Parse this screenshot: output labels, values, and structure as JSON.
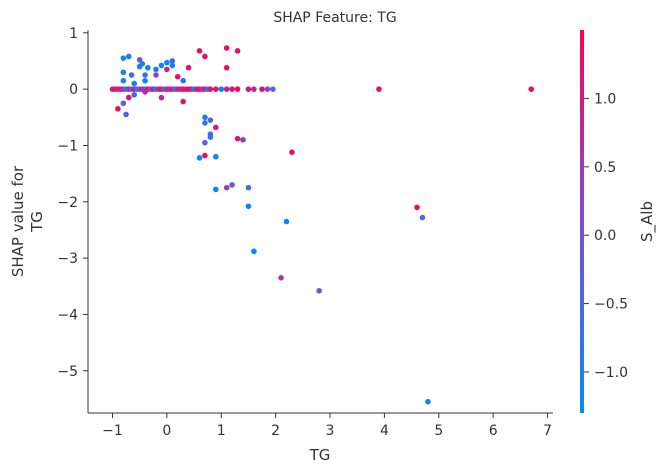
{
  "chart_data": {
    "type": "scatter",
    "title": "SHAP Feature: TG",
    "xlabel": "TG",
    "ylabel": "SHAP value for\nTG",
    "xlim": [
      -1.45,
      7.1
    ],
    "ylim": [
      -5.75,
      1.05
    ],
    "xticks": [
      -1,
      0,
      1,
      2,
      3,
      4,
      5,
      6,
      7
    ],
    "yticks": [
      1,
      0,
      -1,
      -2,
      -3,
      -4,
      -5
    ],
    "grid": false,
    "colorbar": {
      "label": "S_Alb",
      "range": [
        -1.3,
        1.5
      ],
      "ticks": [
        1.0,
        0.5,
        0.0,
        -0.5,
        -1.0
      ],
      "low_color": "#008bfb",
      "high_color": "#ff0052"
    },
    "points": [
      {
        "x": -1.0,
        "y": 0.0,
        "c": 1.2
      },
      {
        "x": -0.95,
        "y": 0.0,
        "c": 1.0
      },
      {
        "x": -0.9,
        "y": 0.0,
        "c": 0.9
      },
      {
        "x": -0.85,
        "y": 0.0,
        "c": 1.1
      },
      {
        "x": -0.8,
        "y": 0.0,
        "c": 0.6
      },
      {
        "x": -0.75,
        "y": 0.0,
        "c": -1.0
      },
      {
        "x": -0.7,
        "y": 0.0,
        "c": 0.8
      },
      {
        "x": -0.65,
        "y": 0.0,
        "c": -0.5
      },
      {
        "x": -0.6,
        "y": 0.0,
        "c": 1.2
      },
      {
        "x": -0.55,
        "y": 0.0,
        "c": -1.1
      },
      {
        "x": -0.5,
        "y": 0.0,
        "c": 0.3
      },
      {
        "x": -0.45,
        "y": 0.0,
        "c": 1.0
      },
      {
        "x": -0.4,
        "y": 0.0,
        "c": -0.8
      },
      {
        "x": -0.35,
        "y": 0.0,
        "c": 1.3
      },
      {
        "x": -0.3,
        "y": 0.0,
        "c": 0.1
      },
      {
        "x": -0.25,
        "y": 0.0,
        "c": 1.1
      },
      {
        "x": -0.2,
        "y": 0.0,
        "c": -1.0
      },
      {
        "x": -0.15,
        "y": 0.0,
        "c": 0.9
      },
      {
        "x": -0.1,
        "y": 0.0,
        "c": 1.2
      },
      {
        "x": -0.05,
        "y": 0.0,
        "c": -0.3
      },
      {
        "x": 0.0,
        "y": 0.0,
        "c": 1.0
      },
      {
        "x": 0.05,
        "y": 0.0,
        "c": 0.7
      },
      {
        "x": 0.1,
        "y": 0.0,
        "c": 1.2
      },
      {
        "x": 0.15,
        "y": 0.0,
        "c": -1.1
      },
      {
        "x": 0.2,
        "y": 0.0,
        "c": 1.1
      },
      {
        "x": 0.25,
        "y": 0.0,
        "c": 0.8
      },
      {
        "x": 0.3,
        "y": 0.0,
        "c": 1.2
      },
      {
        "x": 0.35,
        "y": 0.0,
        "c": 1.0
      },
      {
        "x": 0.4,
        "y": 0.0,
        "c": 1.3
      },
      {
        "x": 0.45,
        "y": 0.0,
        "c": 0.9
      },
      {
        "x": 0.5,
        "y": 0.0,
        "c": -1.2
      },
      {
        "x": 0.55,
        "y": 0.0,
        "c": 1.1
      },
      {
        "x": 0.6,
        "y": 0.0,
        "c": 1.2
      },
      {
        "x": 0.65,
        "y": 0.0,
        "c": 0.5
      },
      {
        "x": 0.7,
        "y": 0.0,
        "c": 1.2
      },
      {
        "x": 0.75,
        "y": 0.0,
        "c": -1.0
      },
      {
        "x": 0.8,
        "y": 0.0,
        "c": 1.1
      },
      {
        "x": 0.9,
        "y": 0.0,
        "c": 1.2
      },
      {
        "x": 1.0,
        "y": 0.0,
        "c": -1.1
      },
      {
        "x": 1.1,
        "y": 0.0,
        "c": 1.0
      },
      {
        "x": 1.2,
        "y": 0.0,
        "c": 1.2
      },
      {
        "x": 1.3,
        "y": 0.0,
        "c": 1.3
      },
      {
        "x": 1.5,
        "y": 0.0,
        "c": 1.2
      },
      {
        "x": 1.6,
        "y": 0.0,
        "c": 0.8
      },
      {
        "x": 1.75,
        "y": 0.0,
        "c": 1.2
      },
      {
        "x": 1.85,
        "y": 0.0,
        "c": 0.3
      },
      {
        "x": 1.95,
        "y": 0.0,
        "c": -0.4
      },
      {
        "x": 3.9,
        "y": 0.0,
        "c": 1.3
      },
      {
        "x": 6.7,
        "y": 0.0,
        "c": 1.3
      },
      {
        "x": -0.8,
        "y": 0.55,
        "c": -1.1
      },
      {
        "x": -0.7,
        "y": 0.58,
        "c": -0.9
      },
      {
        "x": -0.8,
        "y": 0.3,
        "c": -1.0
      },
      {
        "x": -0.8,
        "y": 0.15,
        "c": -1.1
      },
      {
        "x": -0.65,
        "y": 0.25,
        "c": -0.6
      },
      {
        "x": -0.6,
        "y": 0.1,
        "c": -1.0
      },
      {
        "x": -0.5,
        "y": 0.52,
        "c": -0.3
      },
      {
        "x": -0.5,
        "y": 0.4,
        "c": -1.1
      },
      {
        "x": -0.45,
        "y": 0.45,
        "c": -0.8
      },
      {
        "x": -0.35,
        "y": 0.38,
        "c": -1.2
      },
      {
        "x": -0.4,
        "y": 0.25,
        "c": -0.5
      },
      {
        "x": -0.4,
        "y": 0.15,
        "c": -1.1
      },
      {
        "x": -0.2,
        "y": 0.35,
        "c": -0.9
      },
      {
        "x": -0.2,
        "y": 0.25,
        "c": 0.2
      },
      {
        "x": -0.1,
        "y": 0.42,
        "c": -1.2
      },
      {
        "x": 0.0,
        "y": 0.47,
        "c": -1.0
      },
      {
        "x": 0.0,
        "y": 0.35,
        "c": 0.9
      },
      {
        "x": 0.1,
        "y": 0.5,
        "c": -0.7
      },
      {
        "x": 0.1,
        "y": 0.42,
        "c": -1.1
      },
      {
        "x": 0.2,
        "y": 0.22,
        "c": 1.2
      },
      {
        "x": 0.3,
        "y": 0.15,
        "c": -1.0
      },
      {
        "x": 0.4,
        "y": 0.38,
        "c": 1.2
      },
      {
        "x": 0.6,
        "y": 0.68,
        "c": 1.3
      },
      {
        "x": 0.7,
        "y": 0.58,
        "c": 1.2
      },
      {
        "x": 1.1,
        "y": 0.73,
        "c": 1.3
      },
      {
        "x": 1.3,
        "y": 0.68,
        "c": 1.2
      },
      {
        "x": 1.1,
        "y": 0.38,
        "c": 1.3
      },
      {
        "x": -0.9,
        "y": -0.35,
        "c": 1.2
      },
      {
        "x": -0.8,
        "y": -0.25,
        "c": -0.3
      },
      {
        "x": -0.75,
        "y": -0.45,
        "c": -0.4
      },
      {
        "x": -0.7,
        "y": -0.15,
        "c": 1.1
      },
      {
        "x": -0.6,
        "y": -0.1,
        "c": -0.6
      },
      {
        "x": -0.4,
        "y": -0.05,
        "c": 0.6
      },
      {
        "x": -0.1,
        "y": -0.15,
        "c": 0.7
      },
      {
        "x": 0.3,
        "y": -0.22,
        "c": 1.2
      },
      {
        "x": 0.7,
        "y": -0.5,
        "c": -1.1
      },
      {
        "x": 0.7,
        "y": -0.6,
        "c": -0.6
      },
      {
        "x": 0.8,
        "y": -0.55,
        "c": -0.5
      },
      {
        "x": 0.8,
        "y": -0.8,
        "c": -0.4
      },
      {
        "x": 0.8,
        "y": -0.85,
        "c": -0.9
      },
      {
        "x": 0.9,
        "y": -0.68,
        "c": 1.2
      },
      {
        "x": 0.7,
        "y": -0.95,
        "c": -0.2
      },
      {
        "x": 0.7,
        "y": -1.18,
        "c": 1.2
      },
      {
        "x": 0.6,
        "y": -1.22,
        "c": -1.2
      },
      {
        "x": 0.9,
        "y": -1.2,
        "c": -1.1
      },
      {
        "x": 1.3,
        "y": -0.88,
        "c": 1.2
      },
      {
        "x": 1.4,
        "y": -0.9,
        "c": 0.4
      },
      {
        "x": 2.3,
        "y": -1.12,
        "c": 1.3
      },
      {
        "x": 0.9,
        "y": -1.78,
        "c": -1.2
      },
      {
        "x": 1.1,
        "y": -1.75,
        "c": 0.5
      },
      {
        "x": 1.2,
        "y": -1.7,
        "c": -0.1
      },
      {
        "x": 1.5,
        "y": -1.75,
        "c": -0.5
      },
      {
        "x": 1.5,
        "y": -2.08,
        "c": -1.2
      },
      {
        "x": 2.2,
        "y": -2.35,
        "c": -1.1
      },
      {
        "x": 1.6,
        "y": -2.88,
        "c": -1.2
      },
      {
        "x": 2.1,
        "y": -3.35,
        "c": 0.5
      },
      {
        "x": 2.8,
        "y": -3.58,
        "c": -0.2
      },
      {
        "x": 4.6,
        "y": -2.1,
        "c": 1.3
      },
      {
        "x": 4.7,
        "y": -2.28,
        "c": -0.4
      },
      {
        "x": 4.8,
        "y": -5.55,
        "c": -1.2
      }
    ]
  }
}
